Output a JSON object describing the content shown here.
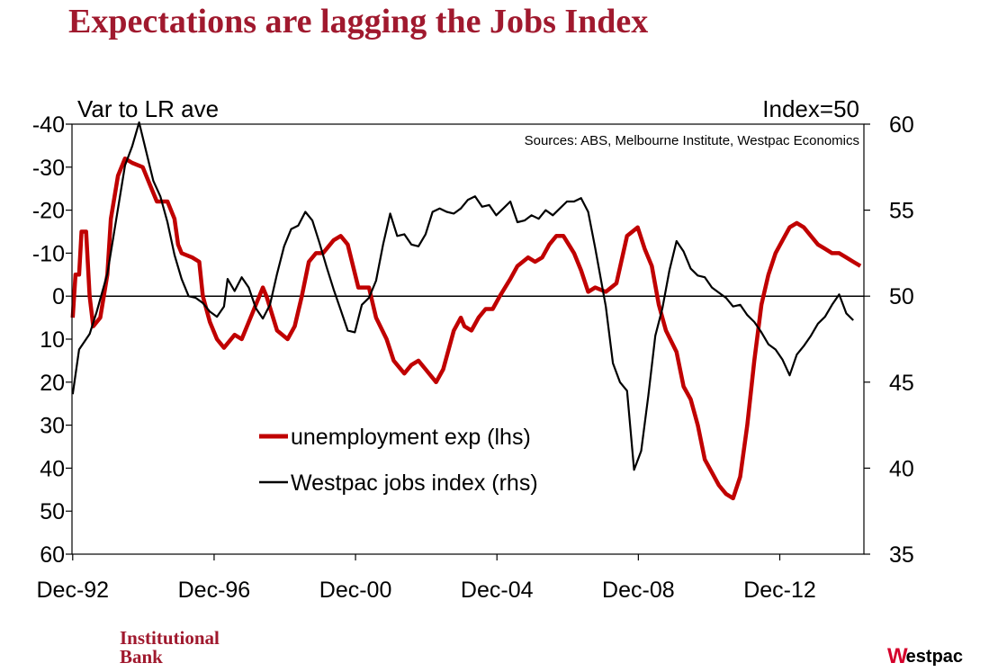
{
  "title": "Expectations are lagging the Jobs Index",
  "chart_data": {
    "type": "line",
    "left_axis_label": "Var to LR ave",
    "right_axis_label": "Index=50",
    "source": "Sources: ABS, Melbourne Institute, Westpac Economics",
    "x_range": [
      1992.9,
      2015.3
    ],
    "x_tick_labels": [
      "Dec-92",
      "Dec-96",
      "Dec-00",
      "Dec-04",
      "Dec-08",
      "Dec-12"
    ],
    "x_tick_values": [
      1992.92,
      1996.92,
      2000.92,
      2004.92,
      2008.92,
      2012.92
    ],
    "left_axis": {
      "range": [
        -40,
        60
      ],
      "inverted": true,
      "ticks": [
        -40,
        -30,
        -20,
        -10,
        0,
        10,
        20,
        30,
        40,
        50,
        60
      ],
      "tick_labels": [
        "-40",
        "-30",
        "-20",
        "-10",
        "0",
        "10",
        "20",
        "30",
        "40",
        "50",
        "60"
      ]
    },
    "right_axis": {
      "range": [
        35,
        60
      ],
      "ticks": [
        60,
        55,
        50,
        45,
        40,
        35
      ],
      "tick_labels": [
        "60",
        "55",
        "50",
        "45",
        "40",
        "35"
      ]
    },
    "zero_line": 0,
    "series": [
      {
        "name": "unemployment exp (lhs)",
        "axis": "left",
        "color": "#c00000",
        "points": [
          [
            1992.92,
            5
          ],
          [
            1993.0,
            -5
          ],
          [
            1993.1,
            -5
          ],
          [
            1993.17,
            -15
          ],
          [
            1993.3,
            -15
          ],
          [
            1993.4,
            0
          ],
          [
            1993.5,
            7
          ],
          [
            1993.7,
            5
          ],
          [
            1993.9,
            -5
          ],
          [
            1994.0,
            -18
          ],
          [
            1994.2,
            -28
          ],
          [
            1994.4,
            -32
          ],
          [
            1994.6,
            -31
          ],
          [
            1994.9,
            -30
          ],
          [
            1995.1,
            -26
          ],
          [
            1995.3,
            -22
          ],
          [
            1995.6,
            -22
          ],
          [
            1995.8,
            -18
          ],
          [
            1995.9,
            -12
          ],
          [
            1996.0,
            -10
          ],
          [
            1996.3,
            -9
          ],
          [
            1996.5,
            -8
          ],
          [
            1996.6,
            0
          ],
          [
            1996.8,
            6
          ],
          [
            1997.0,
            10
          ],
          [
            1997.2,
            12
          ],
          [
            1997.5,
            9
          ],
          [
            1997.7,
            10
          ],
          [
            1998.0,
            4
          ],
          [
            1998.3,
            -2
          ],
          [
            1998.4,
            0
          ],
          [
            1998.7,
            8
          ],
          [
            1999.0,
            10
          ],
          [
            1999.2,
            7
          ],
          [
            1999.4,
            0
          ],
          [
            1999.6,
            -8
          ],
          [
            1999.8,
            -10
          ],
          [
            2000.0,
            -10
          ],
          [
            2000.3,
            -13
          ],
          [
            2000.5,
            -14
          ],
          [
            2000.7,
            -12
          ],
          [
            2001.0,
            -2
          ],
          [
            2001.3,
            -2
          ],
          [
            2001.5,
            5
          ],
          [
            2001.8,
            10
          ],
          [
            2002.0,
            15
          ],
          [
            2002.3,
            18
          ],
          [
            2002.5,
            16
          ],
          [
            2002.7,
            15
          ],
          [
            2002.9,
            17
          ],
          [
            2003.2,
            20
          ],
          [
            2003.4,
            17
          ],
          [
            2003.7,
            8
          ],
          [
            2003.9,
            5
          ],
          [
            2004.0,
            7
          ],
          [
            2004.2,
            8
          ],
          [
            2004.4,
            5
          ],
          [
            2004.6,
            3
          ],
          [
            2004.8,
            3
          ],
          [
            2005.0,
            0
          ],
          [
            2005.3,
            -4
          ],
          [
            2005.5,
            -7
          ],
          [
            2005.8,
            -9
          ],
          [
            2006.0,
            -8
          ],
          [
            2006.2,
            -9
          ],
          [
            2006.4,
            -12
          ],
          [
            2006.6,
            -14
          ],
          [
            2006.8,
            -14
          ],
          [
            2007.1,
            -10
          ],
          [
            2007.3,
            -6
          ],
          [
            2007.5,
            -1
          ],
          [
            2007.7,
            -2
          ],
          [
            2008.0,
            -1
          ],
          [
            2008.3,
            -3
          ],
          [
            2008.6,
            -14
          ],
          [
            2008.9,
            -16
          ],
          [
            2009.1,
            -11
          ],
          [
            2009.3,
            -7
          ],
          [
            2009.5,
            2
          ],
          [
            2009.7,
            8
          ],
          [
            2010.0,
            13
          ],
          [
            2010.2,
            21
          ],
          [
            2010.4,
            24
          ],
          [
            2010.6,
            30
          ],
          [
            2010.8,
            38
          ],
          [
            2011.0,
            41
          ],
          [
            2011.2,
            44
          ],
          [
            2011.4,
            46
          ],
          [
            2011.6,
            47
          ],
          [
            2011.8,
            42
          ],
          [
            2012.0,
            30
          ],
          [
            2012.2,
            15
          ],
          [
            2012.4,
            2
          ],
          [
            2012.6,
            -5
          ],
          [
            2012.8,
            -10
          ],
          [
            2013.0,
            -13
          ],
          [
            2013.2,
            -16
          ],
          [
            2013.4,
            -17
          ],
          [
            2013.6,
            -16
          ],
          [
            2013.8,
            -14
          ],
          [
            2014.0,
            -12
          ],
          [
            2014.2,
            -11
          ],
          [
            2014.4,
            -10
          ],
          [
            2014.6,
            -10
          ],
          [
            2014.8,
            -9
          ],
          [
            2015.0,
            -8
          ],
          [
            2015.2,
            -7
          ]
        ]
      },
      {
        "name": "Westpac jobs index (rhs)",
        "axis": "right",
        "color": "#000000",
        "points": [
          [
            1992.92,
            44.3
          ],
          [
            1993.1,
            46.9
          ],
          [
            1993.4,
            47.8
          ],
          [
            1993.6,
            49.1
          ],
          [
            1993.9,
            51.3
          ],
          [
            1994.1,
            53.8
          ],
          [
            1994.4,
            57.6
          ],
          [
            1994.6,
            58.7
          ],
          [
            1994.8,
            60.1
          ],
          [
            1995.0,
            58.4
          ],
          [
            1995.2,
            56.7
          ],
          [
            1995.4,
            55.8
          ],
          [
            1995.6,
            54.3
          ],
          [
            1995.8,
            52.4
          ],
          [
            1996.0,
            51.0
          ],
          [
            1996.2,
            50.0
          ],
          [
            1996.4,
            49.9
          ],
          [
            1996.6,
            49.6
          ],
          [
            1996.8,
            49.1
          ],
          [
            1997.0,
            48.8
          ],
          [
            1997.2,
            49.4
          ],
          [
            1997.3,
            51.0
          ],
          [
            1997.5,
            50.3
          ],
          [
            1997.7,
            51.1
          ],
          [
            1997.9,
            50.5
          ],
          [
            1998.1,
            49.3
          ],
          [
            1998.3,
            48.7
          ],
          [
            1998.5,
            49.5
          ],
          [
            1998.7,
            51.3
          ],
          [
            1998.9,
            52.9
          ],
          [
            1999.1,
            53.9
          ],
          [
            1999.3,
            54.1
          ],
          [
            1999.5,
            54.9
          ],
          [
            1999.7,
            54.4
          ],
          [
            1999.9,
            53.1
          ],
          [
            2000.1,
            51.7
          ],
          [
            2000.3,
            50.4
          ],
          [
            2000.5,
            49.2
          ],
          [
            2000.7,
            48.0
          ],
          [
            2000.9,
            47.9
          ],
          [
            2001.1,
            49.5
          ],
          [
            2001.3,
            49.9
          ],
          [
            2001.5,
            50.9
          ],
          [
            2001.7,
            53.0
          ],
          [
            2001.9,
            54.8
          ],
          [
            2002.1,
            53.5
          ],
          [
            2002.3,
            53.6
          ],
          [
            2002.5,
            53.0
          ],
          [
            2002.7,
            52.9
          ],
          [
            2002.9,
            53.6
          ],
          [
            2003.1,
            54.9
          ],
          [
            2003.3,
            55.1
          ],
          [
            2003.5,
            54.9
          ],
          [
            2003.7,
            54.8
          ],
          [
            2003.9,
            55.1
          ],
          [
            2004.1,
            55.6
          ],
          [
            2004.3,
            55.8
          ],
          [
            2004.5,
            55.2
          ],
          [
            2004.7,
            55.3
          ],
          [
            2004.9,
            54.7
          ],
          [
            2005.1,
            55.1
          ],
          [
            2005.3,
            55.5
          ],
          [
            2005.5,
            54.3
          ],
          [
            2005.7,
            54.4
          ],
          [
            2005.9,
            54.7
          ],
          [
            2006.1,
            54.5
          ],
          [
            2006.3,
            55.0
          ],
          [
            2006.5,
            54.7
          ],
          [
            2006.7,
            55.1
          ],
          [
            2006.9,
            55.5
          ],
          [
            2007.1,
            55.5
          ],
          [
            2007.3,
            55.7
          ],
          [
            2007.5,
            54.9
          ],
          [
            2007.7,
            52.8
          ],
          [
            2008.0,
            49.4
          ],
          [
            2008.2,
            46.1
          ],
          [
            2008.4,
            45.0
          ],
          [
            2008.6,
            44.5
          ],
          [
            2008.8,
            39.9
          ],
          [
            2009.0,
            41.0
          ],
          [
            2009.2,
            44.2
          ],
          [
            2009.4,
            47.7
          ],
          [
            2009.6,
            49.3
          ],
          [
            2009.8,
            51.5
          ],
          [
            2010.0,
            53.2
          ],
          [
            2010.2,
            52.6
          ],
          [
            2010.4,
            51.6
          ],
          [
            2010.6,
            51.2
          ],
          [
            2010.8,
            51.1
          ],
          [
            2011.0,
            50.5
          ],
          [
            2011.2,
            50.2
          ],
          [
            2011.4,
            49.9
          ],
          [
            2011.6,
            49.4
          ],
          [
            2011.8,
            49.5
          ],
          [
            2012.0,
            48.9
          ],
          [
            2012.2,
            48.5
          ],
          [
            2012.4,
            47.9
          ],
          [
            2012.6,
            47.2
          ],
          [
            2012.8,
            46.9
          ],
          [
            2013.0,
            46.3
          ],
          [
            2013.2,
            45.4
          ],
          [
            2013.4,
            46.6
          ],
          [
            2013.6,
            47.1
          ],
          [
            2013.8,
            47.7
          ],
          [
            2014.0,
            48.4
          ],
          [
            2014.2,
            48.8
          ],
          [
            2014.4,
            49.5
          ],
          [
            2014.6,
            50.1
          ],
          [
            2014.8,
            49.0
          ],
          [
            2015.0,
            48.6
          ]
        ]
      }
    ],
    "legend_position": "lower-left inside plot"
  },
  "footer": {
    "left_brand_line1": "Institutional",
    "left_brand_line2": "Bank",
    "right_brand_mark": "W",
    "right_brand_text": "estpac"
  }
}
